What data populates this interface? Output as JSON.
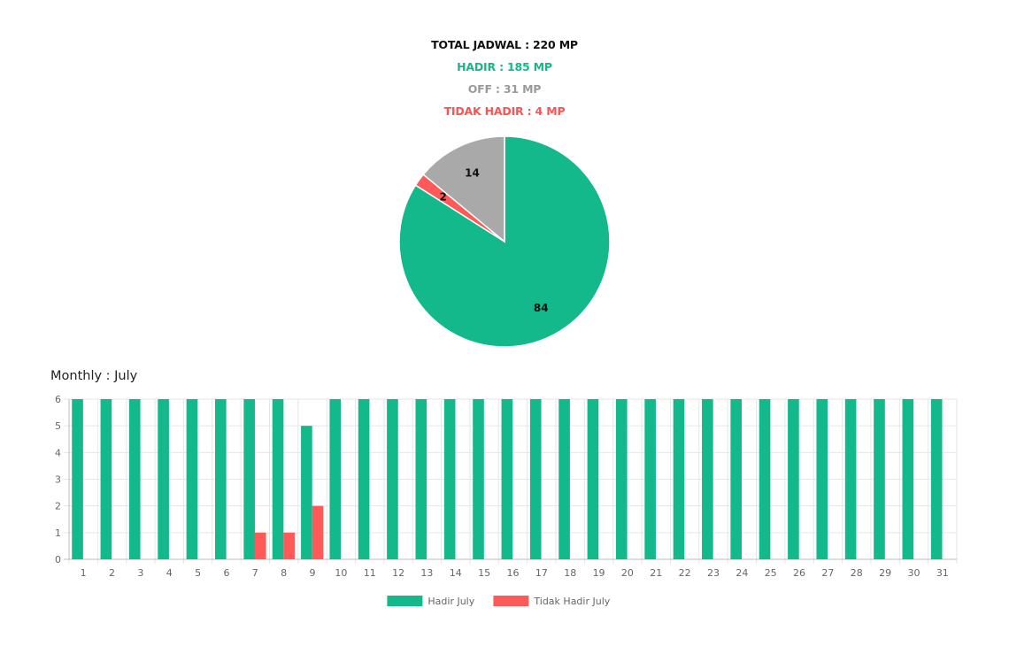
{
  "summary": {
    "total": "TOTAL JADWAL : 220 MP",
    "hadir": "HADIR : 185 MP",
    "off": "OFF : 31 MP",
    "tidak_hadir": "TIDAK HADIR : 4 MP"
  },
  "monthly_title": "Monthly : July",
  "colors": {
    "hadir": "#13b98a",
    "off": "#a9a9a9",
    "tidak_hadir": "#ff5a5a"
  },
  "chart_data": [
    {
      "type": "pie",
      "slices": [
        {
          "value": 84,
          "label": "84",
          "color_key": "hadir"
        },
        {
          "value": 2,
          "label": "2",
          "color_key": "tidak_hadir"
        },
        {
          "value": 14,
          "label": "14",
          "color_key": "off"
        }
      ]
    },
    {
      "type": "bar",
      "title": "Monthly : July",
      "categories": [
        "1",
        "2",
        "3",
        "4",
        "5",
        "6",
        "7",
        "8",
        "9",
        "10",
        "11",
        "12",
        "13",
        "14",
        "15",
        "16",
        "17",
        "18",
        "19",
        "20",
        "21",
        "22",
        "23",
        "24",
        "25",
        "26",
        "27",
        "28",
        "29",
        "30",
        "31"
      ],
      "series": [
        {
          "name": "Hadir July",
          "color_key": "hadir",
          "values": [
            6,
            6,
            6,
            6,
            6,
            6,
            6,
            6,
            5,
            6,
            6,
            6,
            6,
            6,
            6,
            6,
            6,
            6,
            6,
            6,
            6,
            6,
            6,
            6,
            6,
            6,
            6,
            6,
            6,
            6,
            6
          ]
        },
        {
          "name": "Tidak Hadir July",
          "color_key": "tidak_hadir",
          "values": [
            0,
            0,
            0,
            0,
            0,
            0,
            1,
            1,
            2,
            0,
            0,
            0,
            0,
            0,
            0,
            0,
            0,
            0,
            0,
            0,
            0,
            0,
            0,
            0,
            0,
            0,
            0,
            0,
            0,
            0,
            0
          ]
        }
      ],
      "ylim": [
        0,
        6
      ],
      "yticks": [
        0,
        1,
        2,
        3,
        4,
        5,
        6
      ],
      "grid": true,
      "legend": "bottom-center"
    }
  ]
}
